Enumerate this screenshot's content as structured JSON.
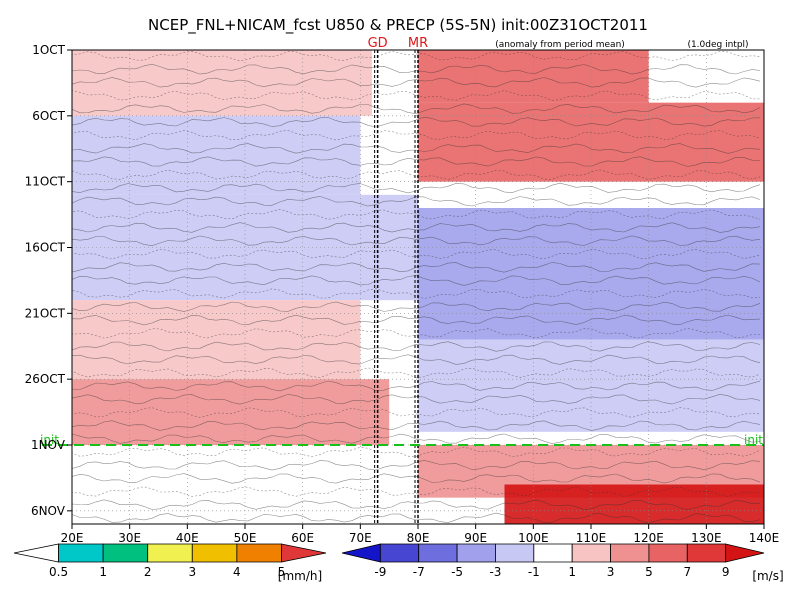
{
  "chart_data": {
    "type": "heatmap",
    "title": "NCEP_FNL+NICAM_fcst U850 & PRECP (5S-5N) init:00Z31OCT2011",
    "subtitle_left": "(anomaly from period mean)",
    "subtitle_right": "(1.0deg intpl)",
    "x_axis": {
      "labels": [
        "20E",
        "30E",
        "40E",
        "50E",
        "60E",
        "70E",
        "80E",
        "90E",
        "100E",
        "110E",
        "120E",
        "130E",
        "140E"
      ],
      "range": [
        20,
        140
      ],
      "unit": "longitude (deg E)"
    },
    "y_axis": {
      "labels": [
        "1OCT",
        "6OCT",
        "11OCT",
        "16OCT",
        "21OCT",
        "26OCT",
        "1NOV",
        "6NOV"
      ],
      "range_days": [
        1,
        37
      ],
      "direction": "time increases downward"
    },
    "markers": [
      {
        "label": "GD",
        "position_lon": 73
      },
      {
        "label": "MR",
        "position_lon": 80
      }
    ],
    "init_line": {
      "label": "init",
      "date": "31OCT"
    },
    "wind_series": {
      "name": "U850 anomaly",
      "unit": "[m/s]",
      "levels": [
        -9,
        -7,
        -5,
        -3,
        -1,
        1,
        3,
        5,
        7,
        9
      ],
      "level_labels": [
        "-9",
        "-7",
        "-5",
        "-3",
        "-1",
        "1",
        "3",
        "5",
        "7",
        "9"
      ],
      "colors": [
        "#1414c8",
        "#4646d2",
        "#6e6ede",
        "#a0a0ec",
        "#c8c8f5",
        "#ffffff",
        "#f7c3c3",
        "#ef9191",
        "#e86464",
        "#e03838",
        "#d41414"
      ]
    },
    "precip_series": {
      "name": "PRECP",
      "unit": "[mm/h]",
      "levels": [
        0.5,
        1,
        2,
        3,
        4,
        5
      ],
      "level_labels": [
        "0.5",
        "1",
        "2",
        "3",
        "4",
        "5"
      ],
      "colors": [
        "#ffffff",
        "#00c8c8",
        "#00c080",
        "#f0f050",
        "#f0c000",
        "#f08000",
        "#e03838"
      ]
    },
    "anomaly_regions": [
      {
        "lon": [
          20,
          72
        ],
        "days": [
          1,
          6
        ],
        "u": 2
      },
      {
        "lon": [
          80,
          120
        ],
        "days": [
          1,
          5
        ],
        "u": 5
      },
      {
        "lon": [
          80,
          140
        ],
        "days": [
          5,
          11
        ],
        "u": 5
      },
      {
        "lon": [
          20,
          70
        ],
        "days": [
          6,
          12
        ],
        "u": -3
      },
      {
        "lon": [
          20,
          80
        ],
        "days": [
          12,
          20
        ],
        "u": -2
      },
      {
        "lon": [
          80,
          140
        ],
        "days": [
          13,
          23
        ],
        "u": -4
      },
      {
        "lon": [
          20,
          70
        ],
        "days": [
          20,
          26
        ],
        "u": 2
      },
      {
        "lon": [
          80,
          140
        ],
        "days": [
          23,
          30
        ],
        "u": -2
      },
      {
        "lon": [
          20,
          75
        ],
        "days": [
          26,
          31
        ],
        "u": 3
      },
      {
        "lon": [
          80,
          140
        ],
        "days": [
          31,
          35
        ],
        "u": 4
      },
      {
        "lon": [
          95,
          140
        ],
        "days": [
          34,
          37
        ],
        "u": 9
      }
    ],
    "grid": true
  }
}
